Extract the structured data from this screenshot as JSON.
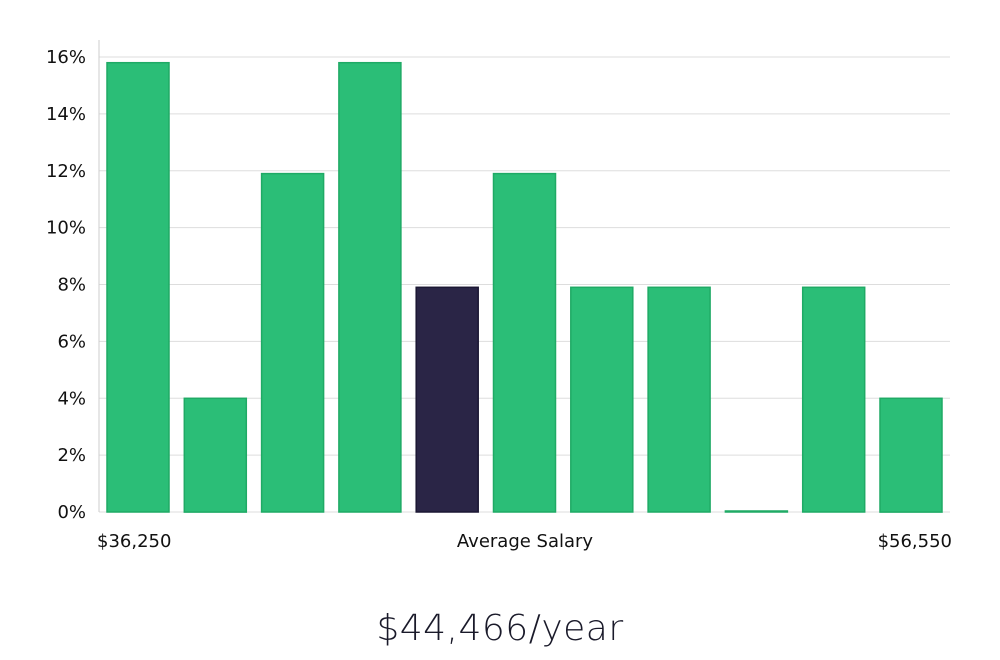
{
  "chart_data": {
    "type": "bar",
    "title": "",
    "xlabel": "Average Salary",
    "ylabel": "",
    "ylim": [
      0,
      16
    ],
    "grid": true,
    "y_ticks": [
      0,
      2,
      4,
      6,
      8,
      10,
      12,
      14,
      16
    ],
    "y_tick_format": "percent",
    "x_range_labels": {
      "min": "$36,250",
      "center": "Average Salary",
      "max": "$56,550"
    },
    "values": [
      15.8,
      4.0,
      11.9,
      15.8,
      7.9,
      11.9,
      7.9,
      7.9,
      0,
      7.9,
      4.0
    ],
    "highlight_index": 4,
    "colors": {
      "bar": "#2bbe77",
      "bar_stroke": "#1faa65",
      "highlight": "#2a2546",
      "highlight_stroke": "#1b1733",
      "grid": "#dddddd",
      "axis": "#cccccc"
    }
  },
  "summary": {
    "average_salary": "$44,466/year"
  }
}
